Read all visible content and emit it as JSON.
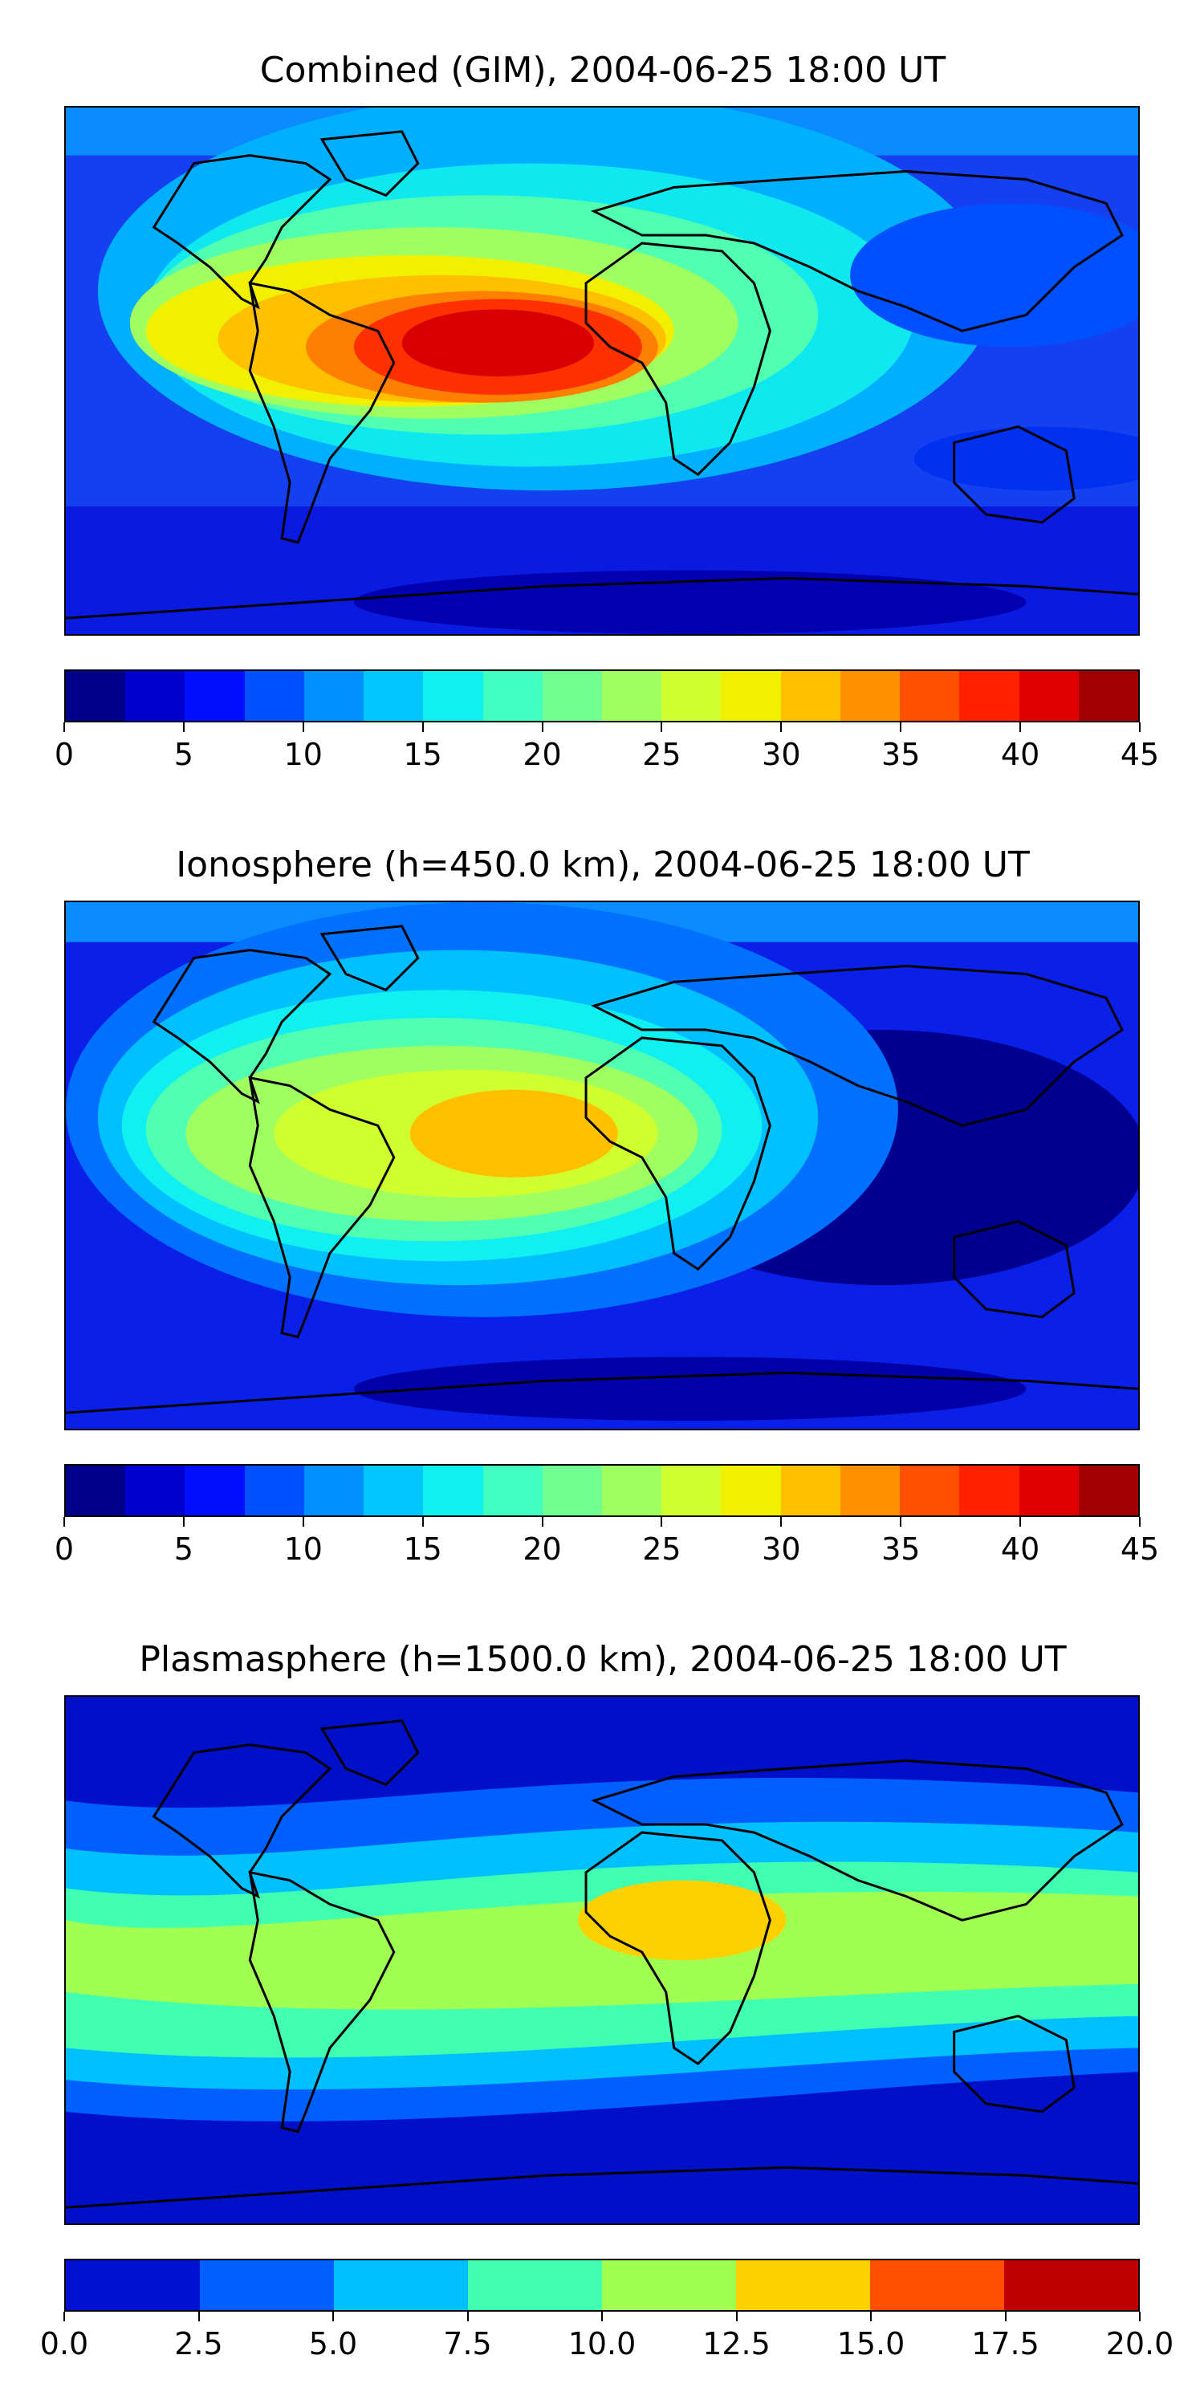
{
  "panels": [
    {
      "title": "Combined (GIM), 2004-06-25 18:00 UT",
      "map_background": "#1a1ae0",
      "map_features": [
        "coastlines",
        "contour-fill"
      ],
      "colorbar": {
        "colors": [
          "#00008b",
          "#0000d0",
          "#0010ff",
          "#0050ff",
          "#0090ff",
          "#00c8ff",
          "#10f0f0",
          "#40ffc0",
          "#70ff90",
          "#a0ff60",
          "#d0ff30",
          "#f0f000",
          "#ffc000",
          "#ff9000",
          "#ff5000",
          "#ff2000",
          "#e00000",
          "#a00000"
        ],
        "ticks": [
          "0",
          "5",
          "10",
          "15",
          "20",
          "25",
          "30",
          "35",
          "40",
          "45"
        ],
        "range": [
          0,
          45
        ]
      }
    },
    {
      "title": "Ionosphere  (h=450.0 km), 2004-06-25 18:00 UT",
      "map_background": "#0a10d0",
      "map_features": [
        "coastlines",
        "contour-fill"
      ],
      "colorbar": {
        "colors": [
          "#00008b",
          "#0000d0",
          "#0010ff",
          "#0050ff",
          "#0090ff",
          "#00c8ff",
          "#10f0f0",
          "#40ffc0",
          "#70ff90",
          "#a0ff60",
          "#d0ff30",
          "#f0f000",
          "#ffc000",
          "#ff9000",
          "#ff5000",
          "#ff2000",
          "#e00000",
          "#a00000"
        ],
        "ticks": [
          "0",
          "5",
          "10",
          "15",
          "20",
          "25",
          "30",
          "35",
          "40",
          "45"
        ],
        "range": [
          0,
          45
        ]
      }
    },
    {
      "title": "Plasmasphere (h=1500.0 km), 2004-06-25 18:00 UT",
      "map_background": "#0a10c8",
      "map_features": [
        "coastlines",
        "contour-fill"
      ],
      "colorbar": {
        "colors": [
          "#0010d0",
          "#0060ff",
          "#00c0ff",
          "#40ffb0",
          "#a0ff50",
          "#ffd000",
          "#ff5000",
          "#c00000"
        ],
        "ticks": [
          "0.0",
          "2.5",
          "5.0",
          "7.5",
          "10.0",
          "12.5",
          "15.0",
          "17.5",
          "20.0"
        ],
        "range": [
          0,
          20
        ]
      }
    }
  ]
}
